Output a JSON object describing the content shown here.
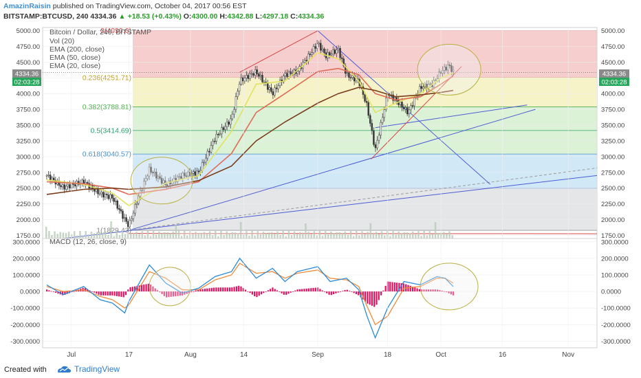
{
  "header": {
    "author": "AmazinRaisin",
    "published": "published on TradingView.com, October 04, 2017 00:56 EST",
    "symbol": "BITSTAMP:BTCUSD, 240",
    "last": "4334.36",
    "change": "▲ +18.53 (+0.43%)",
    "o_label": "O:",
    "o": "4300.00",
    "h_label": "H:",
    "h": "4342.88",
    "l_label": "L:",
    "l": "4297.18",
    "c_label": "C:",
    "c": "4334.36"
  },
  "legend": {
    "title": "Bitcoin / Dollar, 240, BITSTAMP",
    "vol": "Vol (20)",
    "ema200": "EMA (200, close)",
    "ema50": "EMA (50, close)",
    "ema20": "EMA (20, close)"
  },
  "price_badge": {
    "price": "4334.36",
    "countdown": "02:03:28"
  },
  "footer": {
    "created": "Created with",
    "brand": "TradingView"
  },
  "colors": {
    "candle": "#3a3a3a",
    "ema20": "#e2e25e",
    "ema50": "#e06b55",
    "ema200": "#7a3d1a",
    "macd": "#2a8ad8",
    "signal": "#f08a3b",
    "hist": "#e0115f",
    "fib_red": "#f5c6c6",
    "fib_yellow": "#f4f1c0",
    "fib_green": "#d6f0d0",
    "fib_blue": "#c9e4f6",
    "fib_gray": "#e6e6e6"
  },
  "chart_data": [
    {
      "type": "line",
      "title": "Bitcoin / Dollar, 240, BITSTAMP",
      "y_ticks": [
        "5000.00",
        "4750.00",
        "4500.00",
        "4250.00",
        "4000.00",
        "3750.00",
        "3500.00",
        "3250.00",
        "3000.00",
        "2750.00",
        "2500.00",
        "2250.00",
        "2000.00",
        "1750.00"
      ],
      "x_ticks": [
        "Jul",
        "17",
        "Aug",
        "14",
        "Sep",
        "18",
        "Oct",
        "16",
        "Nov"
      ],
      "ylim": [
        1700,
        5050
      ],
      "fib_levels": [
        {
          "label": "0.236(4251.71)",
          "value": 4251.71
        },
        {
          "label": "0.382(3788.81)",
          "value": 3788.81
        },
        {
          "label": "0.5(3414.69)",
          "value": 3414.69
        },
        {
          "label": "0.618(3040.57)",
          "value": 3040.57
        },
        {
          "label": "1(1829.43)",
          "value": 1829.43
        }
      ],
      "fib_top": {
        "label": "0(4999.6)",
        "value": 4999.6
      },
      "fib_mid": {
        "value": 2500
      },
      "series": [
        {
          "name": "BTCUSD",
          "x": [
            "2017-06-27",
            "2017-07-01",
            "2017-07-06",
            "2017-07-10",
            "2017-07-13",
            "2017-07-16",
            "2017-07-17",
            "2017-07-19",
            "2017-07-22",
            "2017-07-26",
            "2017-07-30",
            "2017-08-03",
            "2017-08-07",
            "2017-08-11",
            "2017-08-13",
            "2017-08-17",
            "2017-08-21",
            "2017-08-24",
            "2017-08-27",
            "2017-09-01",
            "2017-09-03",
            "2017-09-06",
            "2017-09-08",
            "2017-09-11",
            "2017-09-13",
            "2017-09-15",
            "2017-09-18",
            "2017-09-20",
            "2017-09-23",
            "2017-09-26",
            "2017-09-29",
            "2017-10-01",
            "2017-10-03",
            "2017-10-04"
          ],
          "values": [
            2700,
            2510,
            2600,
            2410,
            2350,
            2000,
            1900,
            2300,
            2800,
            2550,
            2700,
            2750,
            3300,
            3600,
            4200,
            4350,
            4000,
            4300,
            4350,
            4800,
            4600,
            4700,
            4300,
            4200,
            3800,
            3100,
            4000,
            3900,
            3700,
            4100,
            4150,
            4350,
            4450,
            4334
          ]
        },
        {
          "name": "EMA (20, close)",
          "x": [
            "2017-06-27",
            "2017-07-06",
            "2017-07-13",
            "2017-07-17",
            "2017-07-26",
            "2017-08-03",
            "2017-08-11",
            "2017-08-17",
            "2017-08-24",
            "2017-09-01",
            "2017-09-06",
            "2017-09-11",
            "2017-09-15",
            "2017-09-20",
            "2017-09-26",
            "2017-10-01",
            "2017-10-04"
          ],
          "values": [
            2630,
            2560,
            2420,
            2220,
            2580,
            2700,
            3400,
            4150,
            4200,
            4650,
            4550,
            4200,
            3700,
            3850,
            4000,
            4250,
            4330
          ]
        },
        {
          "name": "EMA (50, close)",
          "x": [
            "2017-06-27",
            "2017-07-06",
            "2017-07-13",
            "2017-07-17",
            "2017-07-26",
            "2017-08-03",
            "2017-08-11",
            "2017-08-17",
            "2017-08-24",
            "2017-09-01",
            "2017-09-06",
            "2017-09-11",
            "2017-09-15",
            "2017-09-20",
            "2017-09-26",
            "2017-10-01",
            "2017-10-04"
          ],
          "values": [
            2600,
            2570,
            2500,
            2400,
            2480,
            2600,
            3050,
            3700,
            4000,
            4350,
            4400,
            4300,
            4000,
            3900,
            3950,
            4150,
            4280
          ]
        },
        {
          "name": "EMA (200, close)",
          "x": [
            "2017-06-27",
            "2017-07-06",
            "2017-07-13",
            "2017-07-17",
            "2017-07-26",
            "2017-08-03",
            "2017-08-11",
            "2017-08-17",
            "2017-08-24",
            "2017-09-01",
            "2017-09-06",
            "2017-09-11",
            "2017-09-15",
            "2017-09-20",
            "2017-09-26",
            "2017-10-01",
            "2017-10-04"
          ],
          "values": [
            2400,
            2480,
            2500,
            2480,
            2520,
            2620,
            2850,
            3250,
            3550,
            3850,
            4000,
            4100,
            4050,
            3950,
            3980,
            4020,
            4050
          ]
        }
      ]
    },
    {
      "type": "line",
      "title": "MACD (12, 26, close, 9)",
      "y_ticks": [
        "300.0000",
        "200.0000",
        "100.0000",
        "0.0000",
        "-100.0000",
        "-200.0000",
        "-300.0000"
      ],
      "ylim": [
        -340,
        320
      ],
      "series": [
        {
          "name": "MACD",
          "x": [
            "2017-06-27",
            "2017-07-01",
            "2017-07-06",
            "2017-07-10",
            "2017-07-13",
            "2017-07-16",
            "2017-07-17",
            "2017-07-22",
            "2017-07-26",
            "2017-07-30",
            "2017-08-03",
            "2017-08-07",
            "2017-08-11",
            "2017-08-13",
            "2017-08-17",
            "2017-08-21",
            "2017-08-24",
            "2017-08-27",
            "2017-09-01",
            "2017-09-04",
            "2017-09-08",
            "2017-09-11",
            "2017-09-13",
            "2017-09-15",
            "2017-09-18",
            "2017-09-22",
            "2017-09-26",
            "2017-09-30",
            "2017-10-02",
            "2017-10-04"
          ],
          "values": [
            40,
            -20,
            30,
            -50,
            -70,
            -130,
            -60,
            160,
            50,
            -10,
            20,
            90,
            120,
            200,
            80,
            140,
            60,
            120,
            150,
            60,
            80,
            10,
            -150,
            -280,
            -100,
            60,
            40,
            90,
            80,
            30
          ]
        },
        {
          "name": "Signal",
          "x": [
            "2017-06-27",
            "2017-07-01",
            "2017-07-06",
            "2017-07-10",
            "2017-07-13",
            "2017-07-16",
            "2017-07-17",
            "2017-07-22",
            "2017-07-26",
            "2017-07-30",
            "2017-08-03",
            "2017-08-07",
            "2017-08-11",
            "2017-08-13",
            "2017-08-17",
            "2017-08-21",
            "2017-08-24",
            "2017-08-27",
            "2017-09-01",
            "2017-09-04",
            "2017-09-08",
            "2017-09-11",
            "2017-09-13",
            "2017-09-15",
            "2017-09-18",
            "2017-09-22",
            "2017-09-26",
            "2017-09-30",
            "2017-10-02",
            "2017-10-04"
          ],
          "values": [
            30,
            0,
            10,
            -30,
            -50,
            -100,
            -80,
            120,
            80,
            10,
            10,
            70,
            100,
            170,
            110,
            120,
            80,
            110,
            130,
            80,
            70,
            30,
            -90,
            -200,
            -150,
            20,
            30,
            80,
            80,
            50
          ]
        }
      ]
    }
  ]
}
